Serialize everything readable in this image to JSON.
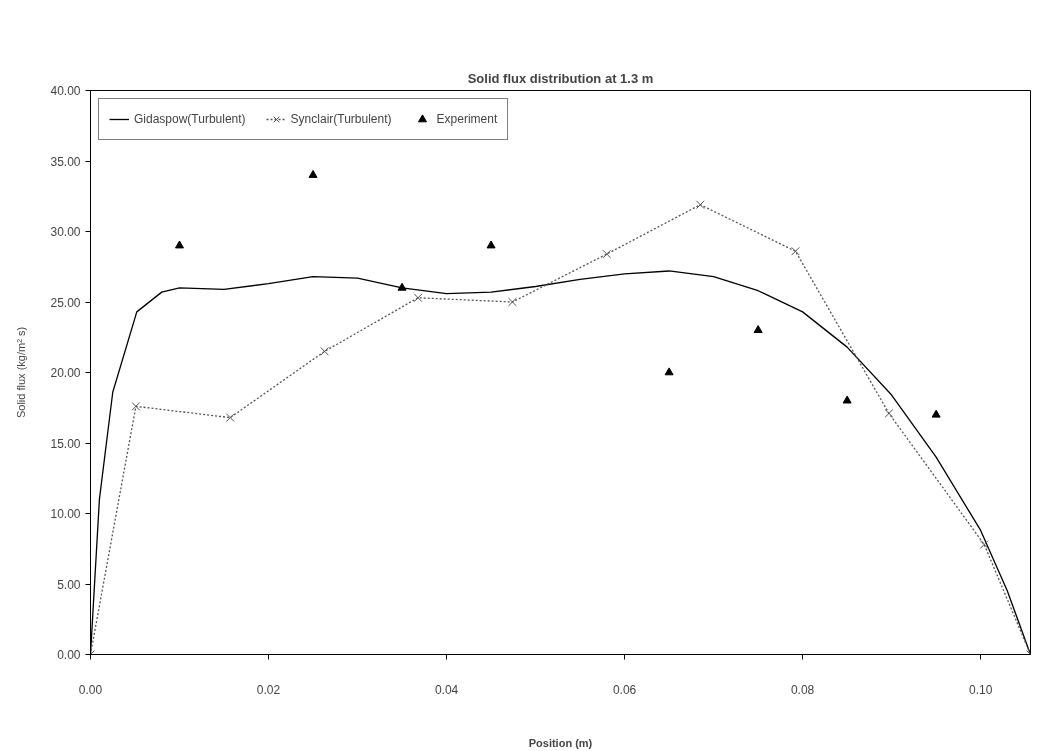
{
  "chart_data": {
    "type": "line",
    "title": "Solid flux distribution at 1.3 m",
    "xlabel": "Position (m)",
    "ylabel": "Solid flux (kg/m² s)",
    "xlim": [
      0,
      0.1056
    ],
    "ylim": [
      0,
      40
    ],
    "xticks": [
      {
        "value": 0,
        "label": "0.00"
      },
      {
        "value": 0.02,
        "label": "0.02"
      },
      {
        "value": 0.04,
        "label": "0.04"
      },
      {
        "value": 0.06,
        "label": "0.06"
      },
      {
        "value": 0.08,
        "label": "0.08"
      },
      {
        "value": 0.1,
        "label": "0.10"
      }
    ],
    "yticks": [
      {
        "value": 0,
        "label": "0.00"
      },
      {
        "value": 5,
        "label": "5.00"
      },
      {
        "value": 10,
        "label": "10.00"
      },
      {
        "value": 15,
        "label": "15.00"
      },
      {
        "value": 20,
        "label": "20.00"
      },
      {
        "value": 25,
        "label": "25.00"
      },
      {
        "value": 30,
        "label": "30.00"
      },
      {
        "value": 35,
        "label": "35.00"
      },
      {
        "value": 40,
        "label": "40.00"
      }
    ],
    "grid": false,
    "legend": "top left",
    "series": [
      {
        "name": "Gidaspow(Turbulent)",
        "color": "#000000",
        "line_style": "solid",
        "marker": "none",
        "x": [
          0,
          0.001,
          0.0025,
          0.0052,
          0.008,
          0.01,
          0.015,
          0.02,
          0.025,
          0.03,
          0.035,
          0.04,
          0.045,
          0.05,
          0.055,
          0.06,
          0.065,
          0.07,
          0.075,
          0.08,
          0.085,
          0.09,
          0.095,
          0.1,
          0.103,
          0.1056
        ],
        "values": [
          0,
          11,
          18.6,
          24.3,
          25.7,
          26.0,
          25.9,
          26.3,
          26.8,
          26.7,
          26.0,
          25.6,
          25.7,
          26.1,
          26.6,
          27.0,
          27.2,
          26.8,
          25.8,
          24.3,
          21.8,
          18.4,
          14.0,
          8.8,
          4.5,
          0
        ]
      },
      {
        "name": "Synclair(Turbulent)",
        "color": "#555555",
        "line_style": "dotted",
        "marker": "cross",
        "x": [
          0,
          0.0051,
          0.0157,
          0.0263,
          0.0368,
          0.0474,
          0.058,
          0.0685,
          0.0792,
          0.0897,
          0.1004,
          0.1056
        ],
        "values": [
          0,
          17.6,
          16.8,
          21.5,
          25.3,
          25.0,
          28.4,
          31.9,
          28.6,
          17.1,
          7.8,
          0
        ]
      },
      {
        "name": "Experiment",
        "type": "scatter",
        "color": "#000000",
        "marker": "triangle",
        "x": [
          0.01,
          0.025,
          0.035,
          0.045,
          0.065,
          0.075,
          0.085,
          0.095
        ],
        "values": [
          29,
          34,
          26,
          29,
          20,
          23,
          18,
          17
        ]
      }
    ]
  }
}
